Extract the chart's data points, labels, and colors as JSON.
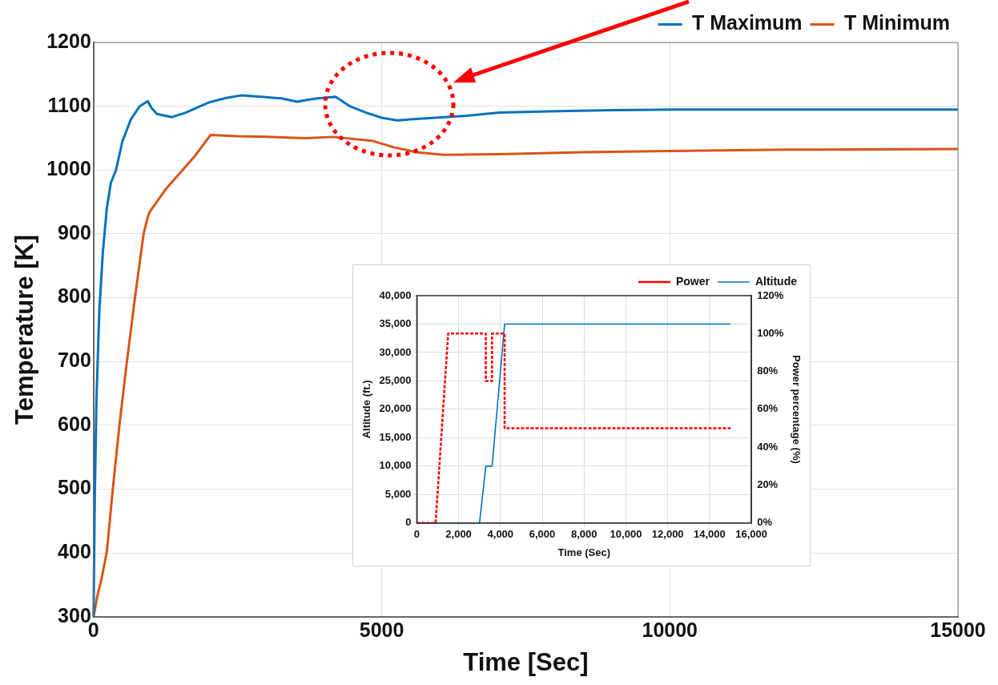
{
  "chart_data": [
    {
      "type": "line",
      "xlabel": "Time [Sec]",
      "ylabel": "Temperature [K]",
      "xlim": [
        0,
        15000
      ],
      "xticks": [
        0,
        5000,
        10000,
        15000
      ],
      "ylim": [
        300,
        1200
      ],
      "yticks": [
        300,
        400,
        500,
        600,
        700,
        800,
        900,
        1000,
        1100,
        1200
      ],
      "grid": true,
      "legend": "top right",
      "marker": "none",
      "line_style": "solid",
      "series": [
        {
          "name": "T Maximum",
          "color": "#0072bd",
          "x": [
            0,
            20,
            50,
            100,
            160,
            230,
            300,
            390,
            500,
            650,
            800,
            940,
            1000,
            1100,
            1360,
            1600,
            2000,
            2300,
            2560,
            2900,
            3280,
            3530,
            3700,
            3860,
            4200,
            4450,
            4730,
            5000,
            5270,
            5600,
            6470,
            7040,
            7910,
            9000,
            10080,
            12000,
            15000
          ],
          "values": [
            300,
            480,
            640,
            780,
            870,
            940,
            980,
            1000,
            1045,
            1080,
            1100,
            1108,
            1098,
            1088,
            1083,
            1090,
            1106,
            1113,
            1117,
            1115,
            1112,
            1107,
            1110,
            1112,
            1115,
            1100,
            1090,
            1082,
            1078,
            1080,
            1085,
            1090,
            1092,
            1094,
            1095,
            1095,
            1095
          ]
        },
        {
          "name": "T Minimum",
          "color": "#d95319",
          "x": [
            0,
            60,
            140,
            230,
            335,
            450,
            580,
            720,
            870,
            940,
            970,
            1260,
            1740,
            2030,
            2500,
            3000,
            3670,
            4150,
            4830,
            5200,
            5600,
            6075,
            7000,
            8500,
            10000,
            12000,
            15000
          ],
          "values": [
            300,
            330,
            360,
            402,
            501,
            601,
            701,
            801,
            901,
            926,
            934,
            971,
            1020,
            1055,
            1053,
            1052,
            1050,
            1052,
            1046,
            1036,
            1028,
            1024,
            1025,
            1028,
            1030,
            1032,
            1033
          ]
        }
      ]
    },
    {
      "type": "line",
      "xlabel": "Time (Sec)",
      "ylabel": "Altitude (ft.)",
      "y2label": "Power percentage (%)",
      "xlim": [
        0,
        16000
      ],
      "xticks": [
        0,
        {
          "value": 2000,
          "label": "2,000"
        },
        {
          "value": 4000,
          "label": "4,000"
        },
        {
          "value": 6000,
          "label": "6,000"
        },
        {
          "value": 8000,
          "label": "8,000"
        },
        {
          "value": 10000,
          "label": "10,000"
        },
        {
          "value": 12000,
          "label": "12,000"
        },
        {
          "value": 14000,
          "label": "14,000"
        },
        {
          "value": 16000,
          "label": "16,000"
        }
      ],
      "ylim": [
        0,
        40000
      ],
      "yticks": [
        0,
        {
          "value": 5000,
          "label": "5,000"
        },
        {
          "value": 10000,
          "label": "10,000"
        },
        {
          "value": 15000,
          "label": "15,000"
        },
        {
          "value": 20000,
          "label": "20,000"
        },
        {
          "value": 25000,
          "label": "25,000"
        },
        {
          "value": 30000,
          "label": "30,000"
        },
        {
          "value": 35000,
          "label": "35,000"
        },
        {
          "value": 40000,
          "label": "40,000"
        }
      ],
      "y2lim": [
        0,
        120
      ],
      "y2ticks": [
        {
          "value": 0,
          "label": "0%"
        },
        {
          "value": 20,
          "label": "20%"
        },
        {
          "value": 40,
          "label": "40%"
        },
        {
          "value": 60,
          "label": "60%"
        },
        {
          "value": 80,
          "label": "80%"
        },
        {
          "value": 100,
          "label": "100%"
        },
        {
          "value": 120,
          "label": "120%"
        }
      ],
      "grid": true,
      "legend": "top right",
      "marker": "none",
      "series": [
        {
          "name": "Altitude",
          "color": "#0070c0",
          "line_style": "solid",
          "x": [
            0,
            3000,
            3300,
            3600,
            4200,
            15000
          ],
          "values": [
            0,
            0,
            10000,
            10000,
            35000,
            35000
          ]
        },
        {
          "name": "Power",
          "color": "#ff0000",
          "line_style": "dashed",
          "axis": "y2",
          "x": [
            0,
            900,
            1500,
            3300,
            3300,
            3600,
            3600,
            4200,
            4200,
            15000
          ],
          "values": [
            0,
            0,
            100,
            100,
            75,
            75,
            100,
            100,
            50,
            50
          ]
        }
      ]
    }
  ]
}
